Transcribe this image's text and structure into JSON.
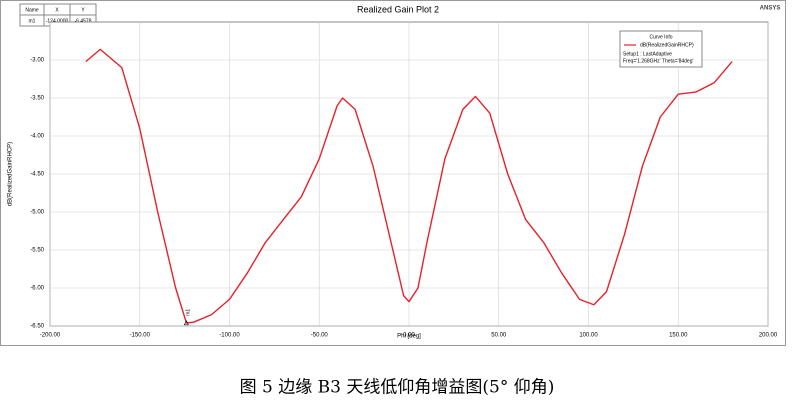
{
  "chart_data": {
    "type": "line",
    "title": "Realized Gain Plot 2",
    "brand": "ANSYS",
    "xlabel": "Phi [deg]",
    "ylabel": "dB(RealizedGainRHCP)",
    "x": [
      -180,
      -172,
      -160,
      -150,
      -140,
      -130,
      -124,
      -120,
      -110,
      -100,
      -90,
      -80,
      -70,
      -60,
      -50,
      -40,
      -37,
      -30,
      -20,
      -10,
      -3,
      0,
      5,
      10,
      20,
      30,
      37,
      45,
      55,
      65,
      75,
      85,
      95,
      103,
      110,
      120,
      130,
      140,
      150,
      160,
      170,
      180
    ],
    "series": [
      {
        "name": "dB(RealizedGainRHCP)",
        "color": "#e8202a",
        "values": [
          -3.02,
          -2.86,
          -3.1,
          -3.9,
          -5.0,
          -6.0,
          -6.46,
          -6.45,
          -6.35,
          -6.15,
          -5.8,
          -5.4,
          -5.1,
          -4.8,
          -4.3,
          -3.6,
          -3.5,
          -3.65,
          -4.4,
          -5.4,
          -6.1,
          -6.18,
          -6.0,
          -5.4,
          -4.3,
          -3.65,
          -3.48,
          -3.7,
          -4.5,
          -5.1,
          -5.4,
          -5.8,
          -6.15,
          -6.22,
          -6.05,
          -5.3,
          -4.4,
          -3.75,
          -3.45,
          -3.42,
          -3.3,
          -3.02
        ]
      }
    ],
    "legend_title": "Curve Info",
    "legend_lines": [
      "Setup1 : LastAdaptive",
      "Freq='1.268GHz' Theta='84deg'"
    ],
    "marker_table": {
      "headers": [
        "Name",
        "X",
        "Y"
      ],
      "row": [
        "m1",
        "-124.0000",
        "-6.4578"
      ]
    },
    "marker": {
      "label": "m1",
      "x": -124,
      "y": -6.4578
    },
    "xlim": [
      -200,
      200
    ],
    "ylim": [
      -6.5,
      -2.5
    ],
    "xticks": [
      {
        "value": -200,
        "label": "-200.00"
      },
      {
        "value": -150,
        "label": "-150.00"
      },
      {
        "value": -100,
        "label": "-100.00"
      },
      {
        "value": -50,
        "label": "-50.00"
      },
      {
        "value": 0,
        "label": "0.00"
      },
      {
        "value": 50,
        "label": "50.00"
      },
      {
        "value": 100,
        "label": "100.00"
      },
      {
        "value": 150,
        "label": "150.00"
      },
      {
        "value": 200,
        "label": "200.00"
      }
    ],
    "yticks": [
      {
        "value": -3,
        "label": "-3.00"
      },
      {
        "value": -3.5,
        "label": "-3.50"
      },
      {
        "value": -4,
        "label": "-4.00"
      },
      {
        "value": -4.5,
        "label": "-4.50"
      },
      {
        "value": -5,
        "label": "-5.00"
      },
      {
        "value": -5.5,
        "label": "-5.50"
      },
      {
        "value": -6,
        "label": "-6.00"
      },
      {
        "value": -6.5,
        "label": "-6.50"
      }
    ],
    "grid": true,
    "caption": "图 5 边缘 B3 天线低仰角增益图(5° 仰角)"
  }
}
